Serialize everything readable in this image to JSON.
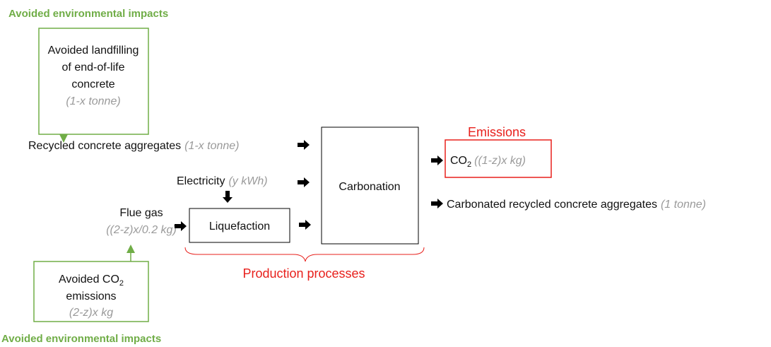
{
  "top_label": "Avoided environmental impacts",
  "landfill_box": {
    "lines": [
      "Avoided landfilling",
      "of end-of-life",
      "concrete"
    ],
    "quantity": "(1-x tonne)"
  },
  "inputs": {
    "aggregates": {
      "label": "Recycled concrete aggregates",
      "quantity": "(1-x tonne)"
    },
    "electricity": {
      "label": "Electricity",
      "quantity": "(y kWh)"
    },
    "flue_gas": {
      "label": "Flue gas",
      "quantity": "((2-z)x/0.2 kg)"
    }
  },
  "processes": {
    "liquefaction": "Liquefaction",
    "carbonation": "Carbonation",
    "label": "Production processes"
  },
  "emissions": {
    "title": "Emissions",
    "formula": "CO",
    "subscript": "2",
    "quantity": "((1-z)x kg)"
  },
  "output": {
    "label": "Carbonated recycled concrete aggregates",
    "quantity": "(1 tonne)"
  },
  "co2_box": {
    "line1": "Avoided CO",
    "subscript": "2",
    "line2": "emissions",
    "quantity": "(2-z)x kg"
  },
  "bottom_label": "Avoided environmental impacts"
}
